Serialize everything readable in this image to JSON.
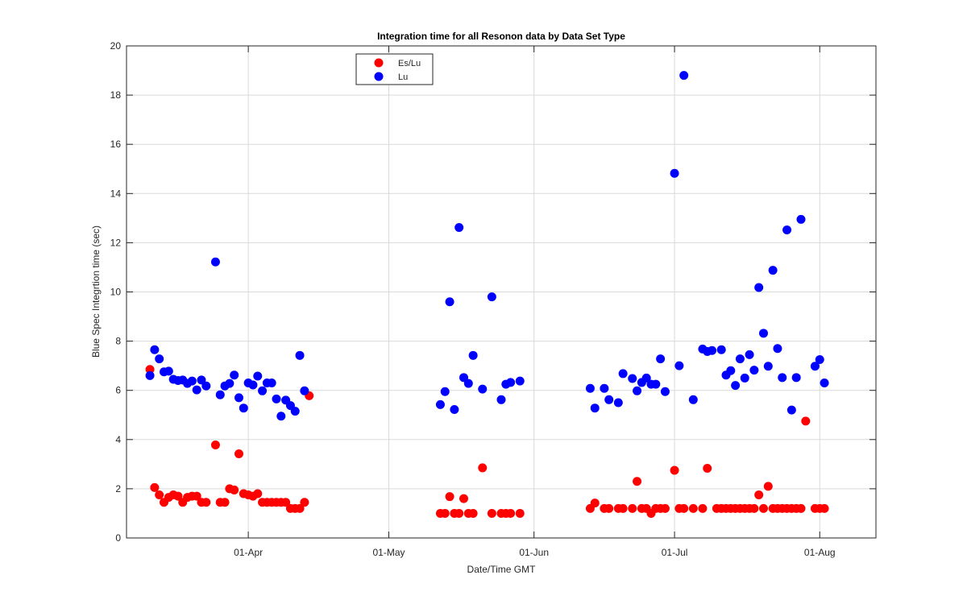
{
  "chart_data": {
    "type": "scatter",
    "title": "Integration time for all Resonon data by Data Set Type",
    "xlabel": "Date/Time GMT",
    "ylabel": "Blue Spec Integrtion time (sec)",
    "x_axis_type": "date",
    "xlim": [
      "2016-03-06",
      "2016-08-13"
    ],
    "ylim": [
      0,
      20
    ],
    "x_ticks": [
      {
        "date": "2016-04-01",
        "label": "01-Apr"
      },
      {
        "date": "2016-05-01",
        "label": "01-May"
      },
      {
        "date": "2016-06-01",
        "label": "01-Jun"
      },
      {
        "date": "2016-07-01",
        "label": "01-Jul"
      },
      {
        "date": "2016-08-01",
        "label": "01-Aug"
      }
    ],
    "y_ticks": [
      0,
      2,
      4,
      6,
      8,
      10,
      12,
      14,
      16,
      18,
      20
    ],
    "grid": true,
    "legend_position": "top-left",
    "series": [
      {
        "name": "Es/Lu",
        "color": "#ff0000",
        "points": [
          [
            "2016-03-11",
            6.85
          ],
          [
            "2016-03-12",
            2.05
          ],
          [
            "2016-03-13",
            1.75
          ],
          [
            "2016-03-14",
            1.45
          ],
          [
            "2016-03-15",
            1.65
          ],
          [
            "2016-03-16",
            1.75
          ],
          [
            "2016-03-17",
            1.7
          ],
          [
            "2016-03-18",
            1.45
          ],
          [
            "2016-03-19",
            1.65
          ],
          [
            "2016-03-20",
            1.7
          ],
          [
            "2016-03-21",
            1.7
          ],
          [
            "2016-03-22",
            1.45
          ],
          [
            "2016-03-23",
            1.45
          ],
          [
            "2016-03-25",
            3.78
          ],
          [
            "2016-03-26",
            1.45
          ],
          [
            "2016-03-27",
            1.45
          ],
          [
            "2016-03-28",
            2.0
          ],
          [
            "2016-03-29",
            1.95
          ],
          [
            "2016-03-30",
            3.42
          ],
          [
            "2016-03-31",
            1.8
          ],
          [
            "2016-04-01",
            1.75
          ],
          [
            "2016-04-02",
            1.7
          ],
          [
            "2016-04-03",
            1.8
          ],
          [
            "2016-04-04",
            1.45
          ],
          [
            "2016-04-05",
            1.45
          ],
          [
            "2016-04-06",
            1.45
          ],
          [
            "2016-04-07",
            1.45
          ],
          [
            "2016-04-08",
            1.45
          ],
          [
            "2016-04-09",
            1.45
          ],
          [
            "2016-04-10",
            1.2
          ],
          [
            "2016-04-11",
            1.2
          ],
          [
            "2016-04-12",
            1.2
          ],
          [
            "2016-04-13",
            1.45
          ],
          [
            "2016-04-14",
            5.78
          ],
          [
            "2016-05-12",
            1.0
          ],
          [
            "2016-05-13",
            1.0
          ],
          [
            "2016-05-14",
            1.68
          ],
          [
            "2016-05-15",
            1.0
          ],
          [
            "2016-05-16",
            1.0
          ],
          [
            "2016-05-17",
            1.6
          ],
          [
            "2016-05-18",
            1.0
          ],
          [
            "2016-05-19",
            1.0
          ],
          [
            "2016-05-21",
            2.85
          ],
          [
            "2016-05-23",
            1.0
          ],
          [
            "2016-05-25",
            1.0
          ],
          [
            "2016-05-26",
            1.0
          ],
          [
            "2016-05-27",
            1.0
          ],
          [
            "2016-05-29",
            1.0
          ],
          [
            "2016-06-13",
            1.2
          ],
          [
            "2016-06-14",
            1.42
          ],
          [
            "2016-06-16",
            1.2
          ],
          [
            "2016-06-17",
            1.2
          ],
          [
            "2016-06-19",
            1.2
          ],
          [
            "2016-06-20",
            1.2
          ],
          [
            "2016-06-22",
            1.2
          ],
          [
            "2016-06-23",
            2.3
          ],
          [
            "2016-06-24",
            1.2
          ],
          [
            "2016-06-25",
            1.2
          ],
          [
            "2016-06-26",
            1.0
          ],
          [
            "2016-06-27",
            1.2
          ],
          [
            "2016-06-28",
            1.2
          ],
          [
            "2016-06-29",
            1.2
          ],
          [
            "2016-07-01",
            2.75
          ],
          [
            "2016-07-02",
            1.2
          ],
          [
            "2016-07-03",
            1.2
          ],
          [
            "2016-07-05",
            1.2
          ],
          [
            "2016-07-07",
            1.2
          ],
          [
            "2016-07-08",
            2.83
          ],
          [
            "2016-07-10",
            1.2
          ],
          [
            "2016-07-11",
            1.2
          ],
          [
            "2016-07-12",
            1.2
          ],
          [
            "2016-07-13",
            1.2
          ],
          [
            "2016-07-14",
            1.2
          ],
          [
            "2016-07-15",
            1.2
          ],
          [
            "2016-07-16",
            1.2
          ],
          [
            "2016-07-17",
            1.2
          ],
          [
            "2016-07-18",
            1.2
          ],
          [
            "2016-07-19",
            1.75
          ],
          [
            "2016-07-20",
            1.2
          ],
          [
            "2016-07-21",
            2.1
          ],
          [
            "2016-07-22",
            1.2
          ],
          [
            "2016-07-23",
            1.2
          ],
          [
            "2016-07-24",
            1.2
          ],
          [
            "2016-07-25",
            1.2
          ],
          [
            "2016-07-26",
            1.2
          ],
          [
            "2016-07-27",
            1.2
          ],
          [
            "2016-07-28",
            1.2
          ],
          [
            "2016-07-29",
            4.75
          ],
          [
            "2016-07-31",
            1.2
          ],
          [
            "2016-08-01",
            1.2
          ],
          [
            "2016-08-02",
            1.2
          ]
        ]
      },
      {
        "name": "Lu",
        "color": "#0000ff",
        "points": [
          [
            "2016-03-11",
            6.6
          ],
          [
            "2016-03-12",
            7.65
          ],
          [
            "2016-03-13",
            7.28
          ],
          [
            "2016-03-14",
            6.75
          ],
          [
            "2016-03-15",
            6.78
          ],
          [
            "2016-03-16",
            6.45
          ],
          [
            "2016-03-17",
            6.4
          ],
          [
            "2016-03-18",
            6.42
          ],
          [
            "2016-03-19",
            6.28
          ],
          [
            "2016-03-20",
            6.38
          ],
          [
            "2016-03-21",
            6.02
          ],
          [
            "2016-03-22",
            6.42
          ],
          [
            "2016-03-23",
            6.18
          ],
          [
            "2016-03-25",
            11.22
          ],
          [
            "2016-03-26",
            5.82
          ],
          [
            "2016-03-27",
            6.18
          ],
          [
            "2016-03-28",
            6.28
          ],
          [
            "2016-03-29",
            6.62
          ],
          [
            "2016-03-30",
            5.7
          ],
          [
            "2016-03-31",
            5.28
          ],
          [
            "2016-04-01",
            6.3
          ],
          [
            "2016-04-02",
            6.22
          ],
          [
            "2016-04-03",
            6.58
          ],
          [
            "2016-04-04",
            5.98
          ],
          [
            "2016-04-05",
            6.3
          ],
          [
            "2016-04-06",
            6.3
          ],
          [
            "2016-04-07",
            5.65
          ],
          [
            "2016-04-08",
            4.95
          ],
          [
            "2016-04-09",
            5.6
          ],
          [
            "2016-04-10",
            5.38
          ],
          [
            "2016-04-11",
            5.15
          ],
          [
            "2016-04-12",
            7.42
          ],
          [
            "2016-04-13",
            5.98
          ],
          [
            "2016-05-12",
            5.42
          ],
          [
            "2016-05-13",
            5.95
          ],
          [
            "2016-05-14",
            9.6
          ],
          [
            "2016-05-15",
            5.22
          ],
          [
            "2016-05-16",
            12.62
          ],
          [
            "2016-05-17",
            6.52
          ],
          [
            "2016-05-18",
            6.28
          ],
          [
            "2016-05-19",
            7.42
          ],
          [
            "2016-05-21",
            6.05
          ],
          [
            "2016-05-23",
            9.8
          ],
          [
            "2016-05-25",
            5.62
          ],
          [
            "2016-05-26",
            6.25
          ],
          [
            "2016-05-27",
            6.32
          ],
          [
            "2016-05-29",
            6.38
          ],
          [
            "2016-06-13",
            6.08
          ],
          [
            "2016-06-14",
            5.28
          ],
          [
            "2016-06-16",
            6.08
          ],
          [
            "2016-06-17",
            5.62
          ],
          [
            "2016-06-19",
            5.5
          ],
          [
            "2016-06-20",
            6.68
          ],
          [
            "2016-06-22",
            6.48
          ],
          [
            "2016-06-23",
            5.98
          ],
          [
            "2016-06-24",
            6.32
          ],
          [
            "2016-06-25",
            6.5
          ],
          [
            "2016-06-26",
            6.25
          ],
          [
            "2016-06-27",
            6.25
          ],
          [
            "2016-06-28",
            7.28
          ],
          [
            "2016-06-29",
            5.95
          ],
          [
            "2016-07-01",
            14.82
          ],
          [
            "2016-07-02",
            7.0
          ],
          [
            "2016-07-03",
            18.8
          ],
          [
            "2016-07-05",
            5.62
          ],
          [
            "2016-07-07",
            7.68
          ],
          [
            "2016-07-08",
            7.58
          ],
          [
            "2016-07-09",
            7.62
          ],
          [
            "2016-07-11",
            7.65
          ],
          [
            "2016-07-12",
            6.62
          ],
          [
            "2016-07-13",
            6.8
          ],
          [
            "2016-07-14",
            6.2
          ],
          [
            "2016-07-15",
            7.28
          ],
          [
            "2016-07-16",
            6.5
          ],
          [
            "2016-07-17",
            7.45
          ],
          [
            "2016-07-18",
            6.82
          ],
          [
            "2016-07-19",
            10.18
          ],
          [
            "2016-07-20",
            8.32
          ],
          [
            "2016-07-21",
            6.98
          ],
          [
            "2016-07-22",
            10.88
          ],
          [
            "2016-07-23",
            7.7
          ],
          [
            "2016-07-24",
            6.52
          ],
          [
            "2016-07-25",
            12.52
          ],
          [
            "2016-07-26",
            5.2
          ],
          [
            "2016-07-27",
            6.52
          ],
          [
            "2016-07-28",
            12.95
          ],
          [
            "2016-07-31",
            6.98
          ],
          [
            "2016-08-01",
            7.25
          ],
          [
            "2016-08-02",
            6.3
          ]
        ]
      }
    ]
  }
}
